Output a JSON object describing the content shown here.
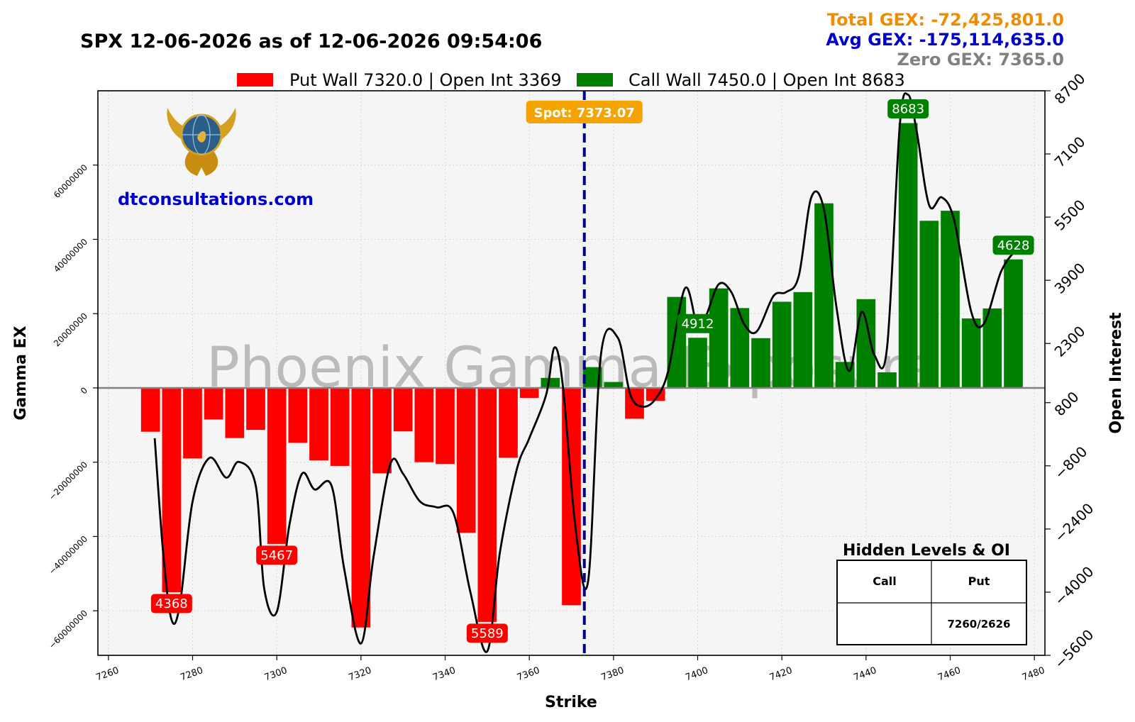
{
  "title": "SPX 12-06-2026 as of 12-06-2026 09:54:06",
  "stats": {
    "total": "Total GEX: -72,425,801.0",
    "avg": "Avg GEX: -175,114,635.0",
    "zero": "Zero GEX: 7365.0",
    "total_color": "#ef8c00",
    "avg_color": "#0000cc",
    "zero_color": "#808080"
  },
  "legend": {
    "put": "Put Wall 7320.0 | Open Int 3369",
    "call": "Call Wall 7450.0 | Open Int 8683",
    "put_color": "#ff0000",
    "call_color": "#008000"
  },
  "watermark": "Phoenix Gamma Exposure",
  "website": "dtconsultations.com",
  "logo_icon": "phoenix-globe-icon",
  "spot_label": "Spot: 7373.07",
  "hidden_table": {
    "title": "Hidden Levels & OI",
    "headers": [
      "Call",
      "Put"
    ],
    "rows": [
      [
        "",
        "7260/2626"
      ]
    ]
  },
  "chart_data": {
    "type": "bar",
    "xlabel": "Strike",
    "ylabel": "Gamma EX",
    "y2label": "Open Interest",
    "xlim": [
      7257.5,
      7482.5
    ],
    "ylim": [
      -72000000,
      80000000
    ],
    "y2lim": [
      -5600,
      8700
    ],
    "x_ticks": [
      7260,
      7280,
      7300,
      7320,
      7340,
      7360,
      7380,
      7400,
      7420,
      7440,
      7460,
      7480
    ],
    "y_ticks": [
      -60000000,
      -40000000,
      -20000000,
      0,
      20000000,
      40000000,
      60000000
    ],
    "y2_ticks": [
      -5600,
      -4000,
      -2400,
      -800,
      800,
      2300,
      3900,
      5500,
      7100,
      8700
    ],
    "spot": 7373.07,
    "grid": true,
    "legend_position": "top-center",
    "bar_width": 4.5,
    "series": [
      {
        "name": "Put Wall 7320.0 | Open Int 3369",
        "color": "#ff0000",
        "points": [
          [
            7270,
            -11800000
          ],
          [
            7275,
            -55000000
          ],
          [
            7280,
            -19000000
          ],
          [
            7285,
            -8500000
          ],
          [
            7290,
            -13500000
          ],
          [
            7295,
            -11300000
          ],
          [
            7300,
            -42000000
          ],
          [
            7305,
            -14800000
          ],
          [
            7310,
            -19500000
          ],
          [
            7315,
            -21000000
          ],
          [
            7320,
            -64500000
          ],
          [
            7325,
            -23000000
          ],
          [
            7330,
            -11700000
          ],
          [
            7335,
            -20000000
          ],
          [
            7340,
            -20500000
          ],
          [
            7345,
            -39000000
          ],
          [
            7350,
            -63000000
          ],
          [
            7355,
            -18800000
          ],
          [
            7360,
            -2700000
          ],
          [
            7370,
            -58500000
          ],
          [
            7385,
            -8300000
          ],
          [
            7390,
            -3500000
          ]
        ]
      },
      {
        "name": "Call Wall 7450.0 | Open Int 8683",
        "color": "#008000",
        "points": [
          [
            7365,
            2700000
          ],
          [
            7375,
            5600000
          ],
          [
            7380,
            1600000
          ],
          [
            7395,
            24500000
          ],
          [
            7400,
            13500000
          ],
          [
            7405,
            26800000
          ],
          [
            7410,
            21500000
          ],
          [
            7415,
            13400000
          ],
          [
            7420,
            23200000
          ],
          [
            7425,
            25800000
          ],
          [
            7430,
            49700000
          ],
          [
            7435,
            7000000
          ],
          [
            7440,
            23900000
          ],
          [
            7445,
            4200000
          ],
          [
            7450,
            71300000
          ],
          [
            7455,
            45000000
          ],
          [
            7460,
            47700000
          ],
          [
            7465,
            18700000
          ],
          [
            7470,
            21400000
          ],
          [
            7475,
            34600000
          ]
        ]
      }
    ],
    "oi_line": {
      "x": [
        7271,
        7273,
        7275,
        7277,
        7280,
        7284,
        7288,
        7291,
        7295,
        7297,
        7300,
        7303,
        7306,
        7309,
        7313,
        7316,
        7320,
        7323,
        7327,
        7330,
        7334,
        7338,
        7342,
        7346,
        7350,
        7353,
        7357,
        7360,
        7364,
        7366,
        7368,
        7371,
        7374,
        7377,
        7381,
        7384,
        7387,
        7390,
        7393,
        7397,
        7400,
        7402,
        7405,
        7408,
        7411,
        7414,
        7418,
        7421,
        7424,
        7427,
        7430,
        7433,
        7436,
        7439,
        7442,
        7445,
        7448,
        7450,
        7452,
        7455,
        7458,
        7461,
        7465,
        7468,
        7472,
        7475
      ],
      "y": [
        -100,
        -3000,
        -4700,
        -4300,
        -1700,
        -600,
        -1100,
        -700,
        -1300,
        -3900,
        -4500,
        -2300,
        -1000,
        -1400,
        -1300,
        -3400,
        -5300,
        -3100,
        -750,
        -1000,
        -1700,
        -1850,
        -2000,
        -4000,
        -5500,
        -3000,
        -900,
        -100,
        1000,
        2200,
        1200,
        -2400,
        -3700,
        2000,
        2450,
        1000,
        700,
        900,
        1600,
        3700,
        2700,
        3000,
        3800,
        3600,
        2800,
        2600,
        3500,
        3600,
        4000,
        6000,
        5700,
        3200,
        1600,
        3100,
        2000,
        2200,
        7800,
        8600,
        7700,
        5800,
        6000,
        5400,
        3100,
        2800,
        4100,
        4600
      ]
    },
    "bar_labels": [
      {
        "x": 7275,
        "y": -55000000,
        "text": "4368",
        "color": "#ff0000"
      },
      {
        "x": 7300,
        "y": -42000000,
        "text": "5467",
        "color": "#ff0000"
      },
      {
        "x": 7350,
        "y": -63000000,
        "text": "5589",
        "color": "#ff0000"
      },
      {
        "x": 7400,
        "y": 13500000,
        "text": "4912",
        "color": "#008000"
      },
      {
        "x": 7450,
        "y": 71300000,
        "text": "8683",
        "color": "#008000"
      },
      {
        "x": 7475,
        "y": 34600000,
        "text": "4628",
        "color": "#008000"
      }
    ]
  }
}
